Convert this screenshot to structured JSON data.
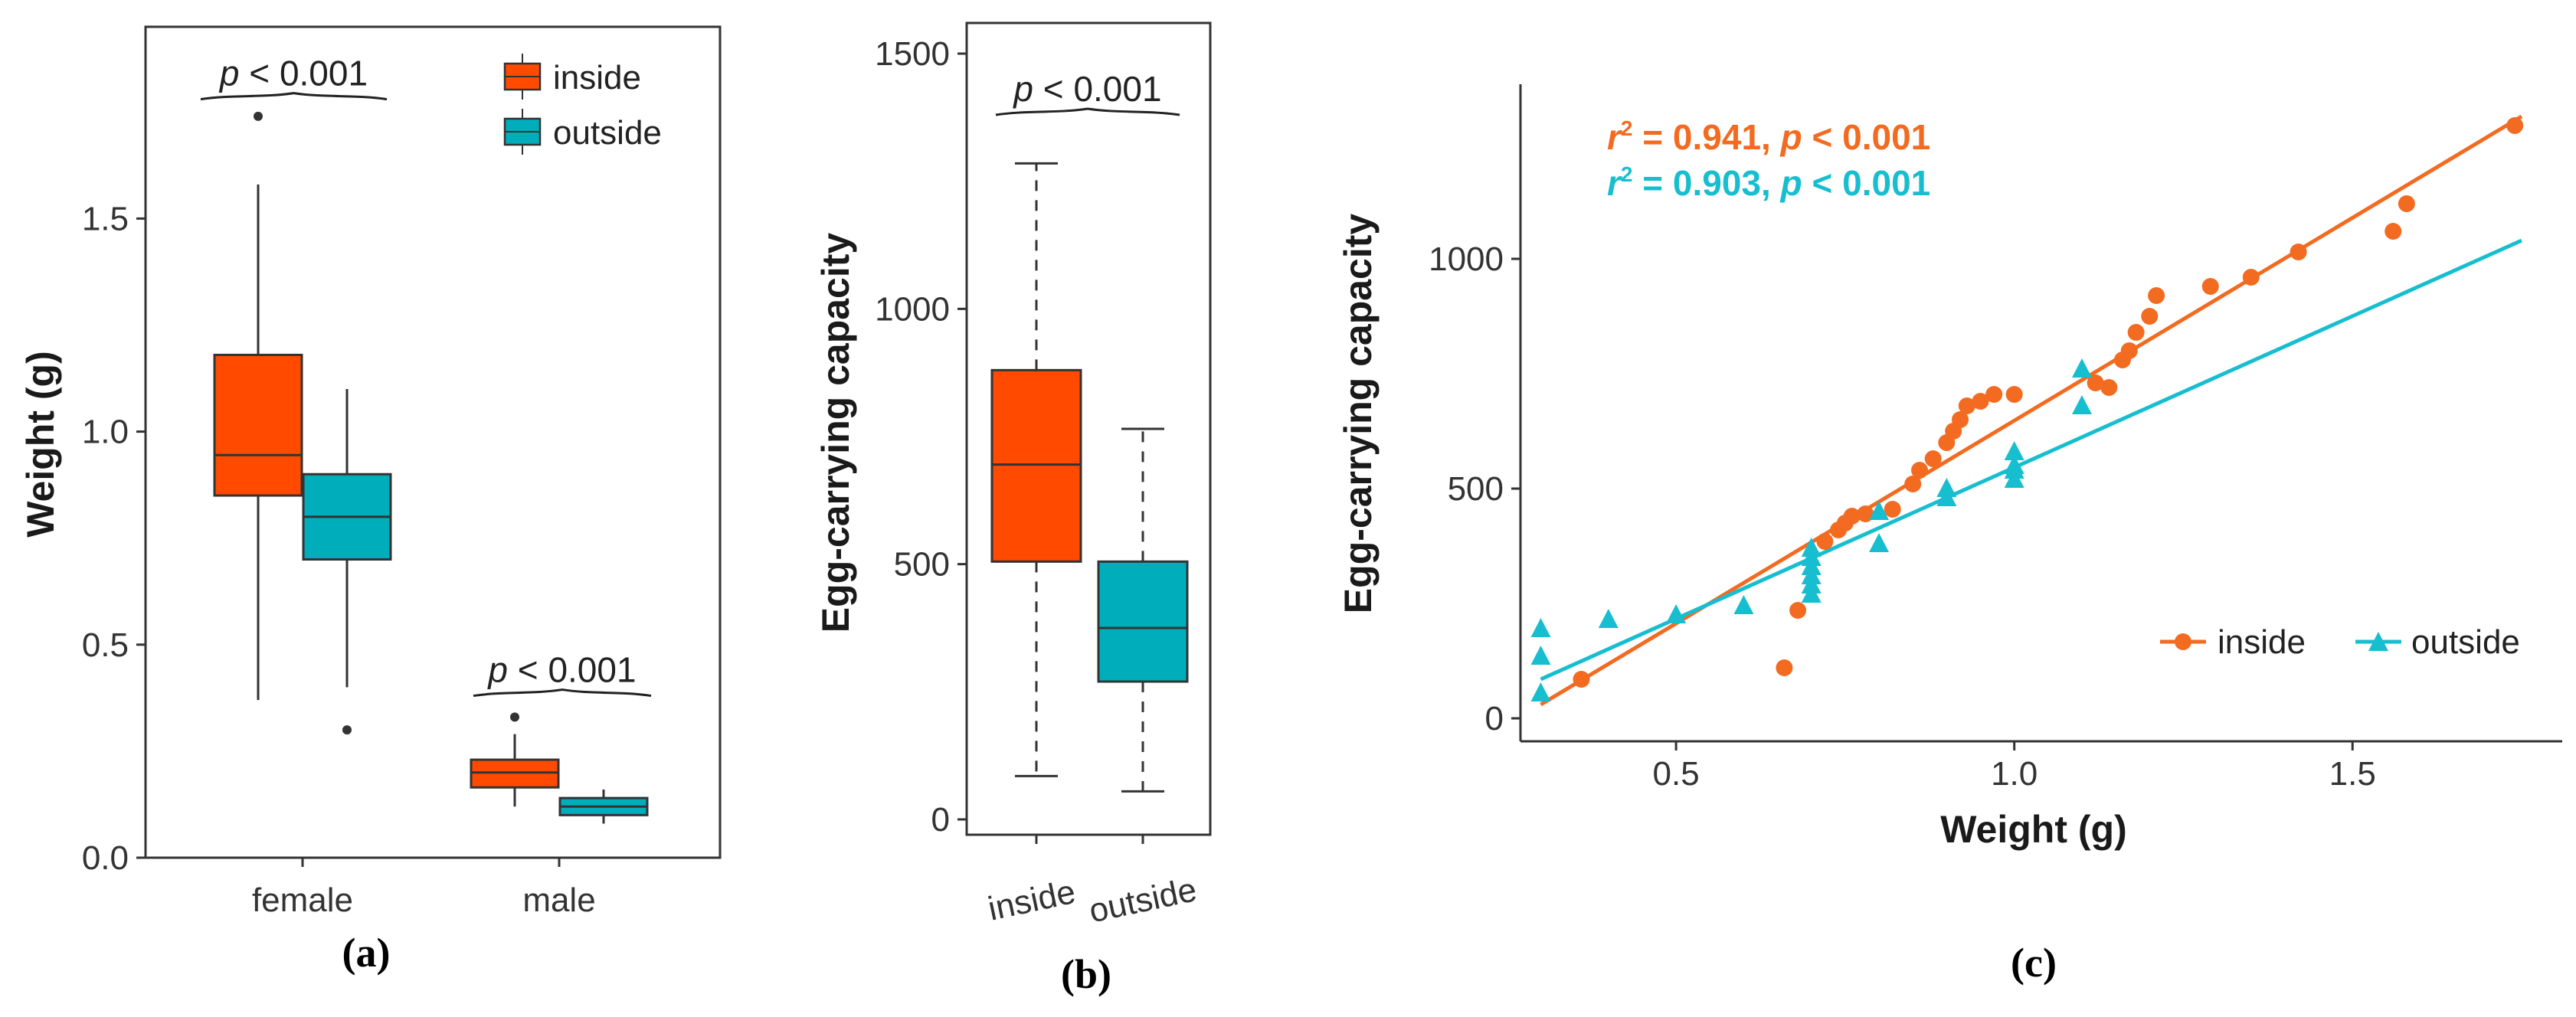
{
  "colors": {
    "inside": "#ff4a00",
    "outside": "#00aebb",
    "inside_line": "#f26b21",
    "outside_line": "#17becf",
    "axis": "#333333"
  },
  "panel_labels": {
    "a": "(a)",
    "b": "(b)",
    "c": "(c)"
  },
  "chart_data": [
    {
      "type": "box",
      "panel": "a",
      "ylabel": "Weight (g)",
      "xlabel": "",
      "ylim": [
        0,
        1.95
      ],
      "yticks": [
        "0.0",
        "0.5",
        "1.0",
        "1.5"
      ],
      "ytick_values": [
        0,
        0.5,
        1.0,
        1.5
      ],
      "categories": [
        "female",
        "male"
      ],
      "legend": [
        "inside",
        "outside"
      ],
      "legend_position": "top-right",
      "annotations": [
        {
          "p": "p",
          "text": " < 0.001",
          "group": "female",
          "y": 1.78
        },
        {
          "p": "p",
          "text": " < 0.001",
          "group": "male",
          "y": 0.38
        }
      ],
      "series": [
        {
          "name": "inside",
          "boxes": [
            {
              "category": "female",
              "min": 0.37,
              "q1": 0.85,
              "median": 0.945,
              "q3": 1.18,
              "max": 1.58,
              "outliers": [
                1.74
              ]
            },
            {
              "category": "male",
              "min": 0.12,
              "q1": 0.165,
              "median": 0.2,
              "q3": 0.23,
              "max": 0.29,
              "outliers": [
                0.33
              ]
            }
          ]
        },
        {
          "name": "outside",
          "boxes": [
            {
              "category": "female",
              "min": 0.4,
              "q1": 0.7,
              "median": 0.8,
              "q3": 0.9,
              "max": 1.1,
              "outliers": [
                0.3
              ]
            },
            {
              "category": "male",
              "min": 0.08,
              "q1": 0.1,
              "median": 0.12,
              "q3": 0.14,
              "max": 0.16,
              "outliers": []
            }
          ]
        }
      ]
    },
    {
      "type": "box",
      "panel": "b",
      "ylabel": "Egg-carrying capacity",
      "xlabel": "",
      "ylim": [
        -30,
        1560
      ],
      "yticks": [
        "0",
        "500",
        "1000",
        "1500"
      ],
      "ytick_values": [
        0,
        500,
        1000,
        1500
      ],
      "categories": [
        "inside",
        "outside"
      ],
      "annotations": [
        {
          "p": "p",
          "text": " < 0.001",
          "y": 1380
        }
      ],
      "boxes": [
        {
          "category": "inside",
          "min": 85,
          "q1": 505,
          "median": 695,
          "q3": 880,
          "max": 1285
        },
        {
          "category": "outside",
          "min": 55,
          "q1": 270,
          "median": 375,
          "q3": 505,
          "max": 765
        }
      ]
    },
    {
      "type": "scatter",
      "panel": "c",
      "xlabel": "Weight (g)",
      "ylabel": "Egg-carrying capacity",
      "xlim": [
        0.27,
        1.81
      ],
      "ylim": [
        -50,
        1380
      ],
      "xticks": [
        "0.5",
        "1.0",
        "1.5"
      ],
      "xtick_values": [
        0.5,
        1.0,
        1.5
      ],
      "yticks": [
        "0",
        "500",
        "1000"
      ],
      "ytick_values": [
        0,
        500,
        1000
      ],
      "legend_position": "bottom-right",
      "stats": [
        {
          "series": "inside",
          "r": "r",
          "sup": "2",
          "r2_text": " = 0.941, ",
          "p": "p",
          "p_text": " < 0.001"
        },
        {
          "series": "outside",
          "r": "r",
          "sup": "2",
          "r2_text": " = 0.903, ",
          "p": "p",
          "p_text": " < 0.001"
        }
      ],
      "series": [
        {
          "name": "inside",
          "marker": "circle",
          "fit": {
            "x": [
              0.3,
              1.75
            ],
            "y": [
              30,
              1310
            ]
          },
          "x": [
            0.36,
            0.66,
            0.68,
            0.72,
            0.74,
            0.75,
            0.76,
            0.78,
            0.82,
            0.85,
            0.86,
            0.88,
            0.9,
            0.91,
            0.92,
            0.93,
            0.95,
            0.97,
            1.0,
            1.14,
            1.12,
            1.16,
            1.17,
            1.18,
            1.2,
            1.21,
            1.29,
            1.35,
            1.42,
            1.56,
            1.58,
            1.74
          ],
          "y": [
            85,
            110,
            235,
            385,
            410,
            425,
            440,
            445,
            455,
            510,
            540,
            565,
            600,
            625,
            650,
            680,
            690,
            705,
            705,
            720,
            730,
            780,
            800,
            840,
            875,
            920,
            940,
            960,
            1015,
            1060,
            1120,
            1290
          ]
        },
        {
          "name": "outside",
          "marker": "triangle",
          "fit": {
            "x": [
              0.3,
              1.75
            ],
            "y": [
              85,
              1040
            ]
          },
          "x": [
            0.3,
            0.3,
            0.3,
            0.4,
            0.5,
            0.6,
            0.7,
            0.7,
            0.7,
            0.7,
            0.7,
            0.7,
            0.8,
            0.8,
            0.9,
            0.9,
            1.0,
            1.0,
            1.0,
            1.0,
            1.1,
            1.1
          ],
          "y": [
            195,
            135,
            55,
            215,
            225,
            245,
            270,
            290,
            310,
            330,
            350,
            370,
            380,
            450,
            480,
            500,
            520,
            540,
            550,
            580,
            680,
            760
          ]
        }
      ]
    }
  ]
}
